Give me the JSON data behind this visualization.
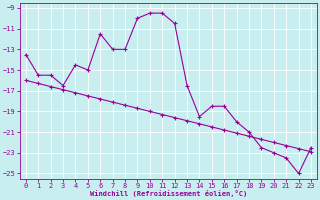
{
  "xlabel": "Windchill (Refroidissement éolien,°C)",
  "hours": [
    0,
    1,
    2,
    3,
    4,
    5,
    6,
    7,
    8,
    9,
    10,
    11,
    12,
    13,
    14,
    15,
    16,
    17,
    18,
    19,
    20,
    21,
    22,
    23
  ],
  "windchill": [
    -13.5,
    -15.5,
    -15.5,
    -16.5,
    -14.5,
    -15.0,
    -11.5,
    -13.0,
    -13.0,
    -10.0,
    -9.5,
    -9.5,
    -10.5,
    -16.5,
    -19.5,
    -18.5,
    -18.5,
    -20.0,
    -21.0,
    -22.5,
    -23.0,
    -23.5,
    -25.0,
    -22.5
  ],
  "trend": [
    -16.0,
    -16.3,
    -16.6,
    -16.9,
    -17.2,
    -17.5,
    -17.8,
    -18.1,
    -18.4,
    -18.7,
    -19.0,
    -19.3,
    -19.6,
    -19.9,
    -20.2,
    -20.5,
    -20.8,
    -21.1,
    -21.4,
    -21.7,
    -22.0,
    -22.3,
    -22.6,
    -22.9
  ],
  "line_color": "#990099",
  "bg_color": "#c8eef0",
  "grid_color": "#ffffff",
  "ylim": [
    -25.5,
    -8.5
  ],
  "xlim": [
    -0.5,
    23.5
  ],
  "yticks": [
    -9,
    -11,
    -13,
    -15,
    -17,
    -19,
    -21,
    -23,
    -25
  ],
  "xticks": [
    0,
    1,
    2,
    3,
    4,
    5,
    6,
    7,
    8,
    9,
    10,
    11,
    12,
    13,
    14,
    15,
    16,
    17,
    18,
    19,
    20,
    21,
    22,
    23
  ]
}
